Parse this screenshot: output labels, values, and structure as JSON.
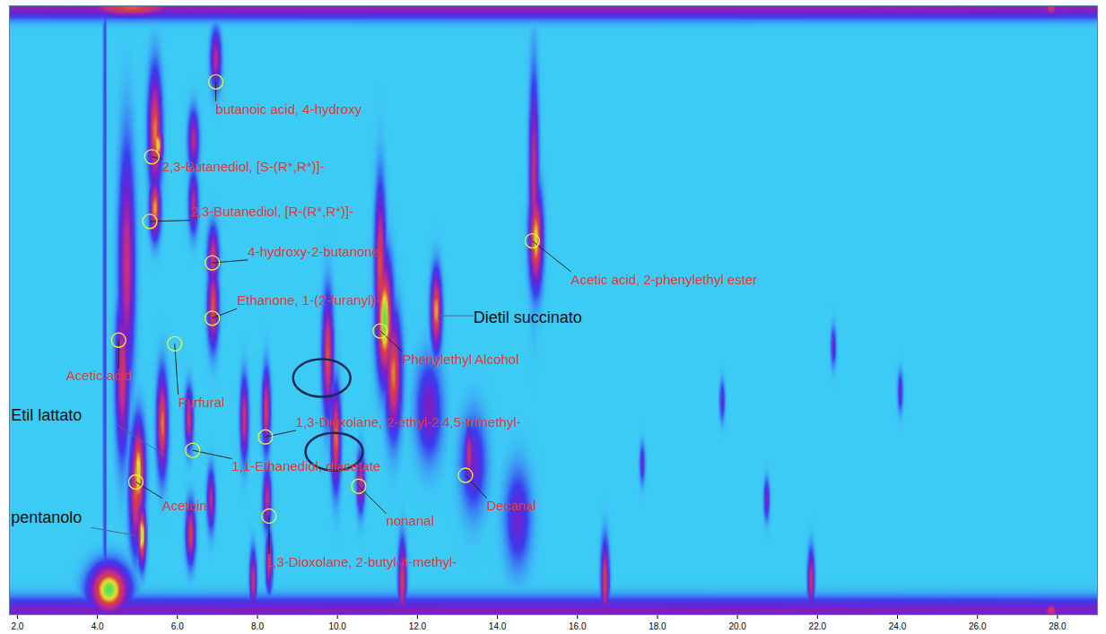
{
  "chart_data": {
    "type": "heatmap",
    "xlim": [
      1.8,
      29.0
    ],
    "xticks": [
      {
        "value": 2,
        "label": "2.0"
      },
      {
        "value": 4,
        "label": "4.0"
      },
      {
        "value": 6,
        "label": "6.0"
      },
      {
        "value": 8,
        "label": "8.0"
      },
      {
        "value": 10,
        "label": "10.0"
      },
      {
        "value": 12,
        "label": "12.0"
      },
      {
        "value": 14,
        "label": "14.0"
      },
      {
        "value": 16,
        "label": "16.0"
      },
      {
        "value": 18,
        "label": "18.0"
      },
      {
        "value": 20,
        "label": "20.0"
      },
      {
        "value": 22,
        "label": "22.0"
      },
      {
        "value": 24,
        "label": "24.0"
      },
      {
        "value": 26,
        "label": "26.0"
      },
      {
        "value": 28,
        "label": "28.0"
      }
    ],
    "ylim": [
      0,
      100
    ],
    "zlim": [
      0,
      1
    ],
    "tick_labels": "x",
    "peaks": [
      {
        "x": 4.73,
        "y": 57.2,
        "sx": 0.12,
        "sy": 12,
        "intensity": 0.55
      },
      {
        "x": 4.62,
        "y": 39.5,
        "sx": 0.1,
        "sy": 8,
        "intensity": 0.6
      },
      {
        "x": 4.96,
        "y": 20.4,
        "sx": 0.1,
        "sy": 6,
        "intensity": 0.7
      },
      {
        "x": 5.44,
        "y": 79.4,
        "sx": 0.1,
        "sy": 6,
        "intensity": 0.75
      },
      {
        "x": 5.51,
        "y": 77.1,
        "sx": 0.07,
        "sy": 2,
        "intensity": 0.9
      },
      {
        "x": 5.44,
        "y": 66.8,
        "sx": 0.08,
        "sy": 3,
        "intensity": 0.8
      },
      {
        "x": 6.4,
        "y": 77.9,
        "sx": 0.08,
        "sy": 3,
        "intensity": 0.5
      },
      {
        "x": 6.4,
        "y": 67.6,
        "sx": 0.07,
        "sy": 3,
        "intensity": 0.5
      },
      {
        "x": 6.96,
        "y": 91.2,
        "sx": 0.08,
        "sy": 3,
        "intensity": 0.5
      },
      {
        "x": 6.89,
        "y": 58.7,
        "sx": 0.08,
        "sy": 3,
        "intensity": 0.6
      },
      {
        "x": 6.89,
        "y": 50.6,
        "sx": 0.08,
        "sy": 4,
        "intensity": 0.7
      },
      {
        "x": 5.62,
        "y": 31.4,
        "sx": 0.08,
        "sy": 5,
        "intensity": 0.75
      },
      {
        "x": 5.02,
        "y": 23.3,
        "sx": 0.1,
        "sy": 5,
        "intensity": 0.9
      },
      {
        "x": 5.11,
        "y": 13.0,
        "sx": 0.06,
        "sy": 3,
        "intensity": 0.95
      },
      {
        "x": 6.29,
        "y": 32.2,
        "sx": 0.06,
        "sy": 3,
        "intensity": 0.6
      },
      {
        "x": 6.33,
        "y": 13.3,
        "sx": 0.07,
        "sy": 3,
        "intensity": 0.65
      },
      {
        "x": 6.84,
        "y": 18.9,
        "sx": 0.06,
        "sy": 3,
        "intensity": 0.5
      },
      {
        "x": 7.67,
        "y": 32.2,
        "sx": 0.06,
        "sy": 4,
        "intensity": 0.6
      },
      {
        "x": 8.22,
        "y": 33.6,
        "sx": 0.06,
        "sy": 4,
        "intensity": 0.65
      },
      {
        "x": 8.24,
        "y": 18.9,
        "sx": 0.06,
        "sy": 3,
        "intensity": 0.55
      },
      {
        "x": 8.29,
        "y": 8.6,
        "sx": 0.05,
        "sy": 3,
        "intensity": 0.6
      },
      {
        "x": 7.89,
        "y": 5.6,
        "sx": 0.05,
        "sy": 3,
        "intensity": 0.6
      },
      {
        "x": 9.76,
        "y": 42.5,
        "sx": 0.08,
        "sy": 6,
        "intensity": 0.7
      },
      {
        "x": 9.96,
        "y": 29.2,
        "sx": 0.07,
        "sy": 5,
        "intensity": 0.75
      },
      {
        "x": 10.58,
        "y": 21.8,
        "sx": 0.06,
        "sy": 3,
        "intensity": 0.55
      },
      {
        "x": 11.18,
        "y": 48.4,
        "sx": 0.12,
        "sy": 6,
        "intensity": 1.0
      },
      {
        "x": 11.07,
        "y": 57.2,
        "sx": 0.08,
        "sy": 8,
        "intensity": 0.7
      },
      {
        "x": 11.4,
        "y": 39.5,
        "sx": 0.12,
        "sy": 6,
        "intensity": 0.75
      },
      {
        "x": 12.47,
        "y": 49.9,
        "sx": 0.08,
        "sy": 4,
        "intensity": 0.8
      },
      {
        "x": 11.62,
        "y": 5.6,
        "sx": 0.06,
        "sy": 4,
        "intensity": 0.65
      },
      {
        "x": 13.29,
        "y": 26.3,
        "sx": 0.06,
        "sy": 3,
        "intensity": 0.6
      },
      {
        "x": 14.96,
        "y": 61.7,
        "sx": 0.1,
        "sy": 5,
        "intensity": 0.85
      },
      {
        "x": 14.91,
        "y": 72.0,
        "sx": 0.07,
        "sy": 10,
        "intensity": 0.55
      },
      {
        "x": 16.69,
        "y": 5.6,
        "sx": 0.06,
        "sy": 4,
        "intensity": 0.65
      },
      {
        "x": 17.62,
        "y": 24.8,
        "sx": 0.04,
        "sy": 2,
        "intensity": 0.3
      },
      {
        "x": 19.62,
        "y": 35.1,
        "sx": 0.04,
        "sy": 2,
        "intensity": 0.3
      },
      {
        "x": 20.73,
        "y": 18.9,
        "sx": 0.04,
        "sy": 2,
        "intensity": 0.4
      },
      {
        "x": 21.84,
        "y": 5.6,
        "sx": 0.05,
        "sy": 3,
        "intensity": 0.6
      },
      {
        "x": 24.07,
        "y": 36.6,
        "sx": 0.04,
        "sy": 2,
        "intensity": 0.3
      },
      {
        "x": 22.4,
        "y": 44.0,
        "sx": 0.04,
        "sy": 2,
        "intensity": 0.3
      },
      {
        "x": 15.4,
        "y": 0.6,
        "sx": 40,
        "sy": 1.5,
        "intensity": 0.35
      },
      {
        "x": 15.4,
        "y": 99.7,
        "sx": 40,
        "sy": 1.2,
        "intensity": 0.4
      },
      {
        "x": 4.29,
        "y": 4.1,
        "sx": 0.3,
        "sy": 2.5,
        "intensity": 1.0
      },
      {
        "x": 4.84,
        "y": 99.7,
        "sx": 0.8,
        "sy": 1,
        "intensity": 0.7
      },
      {
        "x": 27.84,
        "y": 99.7,
        "sx": 0.12,
        "sy": 1,
        "intensity": 0.6
      },
      {
        "x": 27.84,
        "y": 0.6,
        "sx": 0.12,
        "sy": 1,
        "intensity": 0.6
      },
      {
        "x": 12.29,
        "y": 33.6,
        "sx": 0.2,
        "sy": 5,
        "intensity": 0.35
      },
      {
        "x": 13.4,
        "y": 24.8,
        "sx": 0.2,
        "sy": 5,
        "intensity": 0.3
      },
      {
        "x": 14.51,
        "y": 15.9,
        "sx": 0.2,
        "sy": 5,
        "intensity": 0.3
      },
      {
        "x": 4.18,
        "y": 49.9,
        "sx": 0.02,
        "sy": 60,
        "intensity": 0.3
      }
    ],
    "annotations": [
      {
        "text": "butanoic acid, 4-hydroxy",
        "x": 6.96,
        "y": 87.5,
        "label_x": 6.96,
        "label_y": 83.0,
        "color": "#e03a3a",
        "marker": "circle"
      },
      {
        "text": "2,3-Butanediol, [S-(R*,R*)]-",
        "x": 5.36,
        "y": 75.2,
        "label_x": 5.62,
        "label_y": 73.5,
        "color": "#e03a3a",
        "marker": "circle"
      },
      {
        "text": "2,3-Butanediol, [R-(R*,R*)]-",
        "x": 5.31,
        "y": 64.6,
        "label_x": 6.33,
        "label_y": 66.1,
        "color": "#e03a3a",
        "marker": "circle"
      },
      {
        "text": "4-hydroxy-2-butanone",
        "x": 6.87,
        "y": 57.8,
        "label_x": 7.76,
        "label_y": 59.6,
        "color": "#e03a3a",
        "marker": "circle"
      },
      {
        "text": "Ethanone, 1-(2-furanyl)-",
        "x": 6.87,
        "y": 48.7,
        "label_x": 7.49,
        "label_y": 51.6,
        "color": "#e03a3a",
        "marker": "circle"
      },
      {
        "text": "Acetic acid, 2-phenylethyl ester",
        "x": 14.87,
        "y": 61.4,
        "label_x": 15.84,
        "label_y": 55.0,
        "color": "#e03a3a",
        "marker": "circle"
      },
      {
        "text": "Dietil succinato",
        "x": 12.51,
        "y": 49.1,
        "label_x": 13.4,
        "label_y": 48.8,
        "color": "#111111",
        "marker": "none"
      },
      {
        "text": "Phenylethyl Alcohol",
        "x": 11.07,
        "y": 46.6,
        "label_x": 11.62,
        "label_y": 41.9,
        "color": "#e03a3a",
        "marker": "circle"
      },
      {
        "text": "Acetic acid",
        "x": 4.53,
        "y": 45.1,
        "label_x": 3.22,
        "label_y": 39.2,
        "color": "#e03a3a",
        "marker": "circle"
      },
      {
        "text": "Furfural",
        "x": 5.93,
        "y": 44.5,
        "label_x": 6.02,
        "label_y": 34.8,
        "color": "#e03a3a",
        "marker": "circle"
      },
      {
        "text": "Etil lattato",
        "x": 5.73,
        "y": 26.0,
        "label_x": 1.84,
        "label_y": 32.7,
        "color": "#111111",
        "marker": "none"
      },
      {
        "text": "1,3-Dioxolane, 2-ethyl-2,4,5-trimethyl-",
        "x": 8.2,
        "y": 29.2,
        "label_x": 8.96,
        "label_y": 31.6,
        "color": "#e03a3a",
        "marker": "circle"
      },
      {
        "text": "1,1-Ethanediol, diacetate",
        "x": 6.38,
        "y": 27.0,
        "label_x": 7.36,
        "label_y": 24.3,
        "color": "#e03a3a",
        "marker": "circle"
      },
      {
        "text": "Acetoin",
        "x": 4.96,
        "y": 21.8,
        "label_x": 5.62,
        "label_y": 17.8,
        "color": "#e03a3a",
        "marker": "circle"
      },
      {
        "text": "nonanal",
        "x": 10.53,
        "y": 21.1,
        "label_x": 11.22,
        "label_y": 15.3,
        "color": "#e03a3a",
        "marker": "circle"
      },
      {
        "text": "Decanal",
        "x": 13.2,
        "y": 22.9,
        "label_x": 13.73,
        "label_y": 17.8,
        "color": "#e03a3a",
        "marker": "circle"
      },
      {
        "text": "pentanolo",
        "x": 4.96,
        "y": 13.0,
        "label_x": 1.84,
        "label_y": 15.9,
        "color": "#111111",
        "marker": "none"
      },
      {
        "text": "1,3-Dioxolane, 2-butyl-4-methyl-",
        "x": 8.29,
        "y": 16.2,
        "label_x": 8.2,
        "label_y": 8.6,
        "color": "#e03a3a",
        "marker": "circle"
      }
    ],
    "highlights": [
      {
        "x": 9.62,
        "y": 38.8
      },
      {
        "x": 9.93,
        "y": 26.7
      }
    ]
  }
}
